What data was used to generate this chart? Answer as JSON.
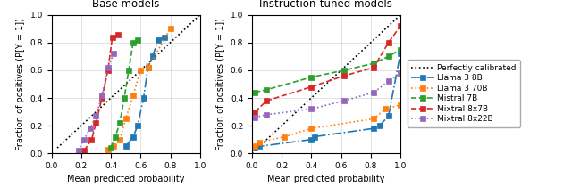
{
  "base_models": {
    "llama3_8b": {
      "x": [
        0.5,
        0.55,
        0.58,
        0.62,
        0.65,
        0.68,
        0.72,
        0.76
      ],
      "y": [
        0.05,
        0.12,
        0.2,
        0.4,
        0.62,
        0.7,
        0.82,
        0.84
      ],
      "color": "#1f77b4",
      "linestyle": "-.",
      "marker": "s",
      "label": "Llama 3 8B"
    },
    "llama3_70b": {
      "x": [
        0.38,
        0.42,
        0.46,
        0.5,
        0.55,
        0.6,
        0.65,
        0.8
      ],
      "y": [
        0.03,
        0.05,
        0.1,
        0.25,
        0.42,
        0.6,
        0.62,
        0.9
      ],
      "color": "#ff7f0e",
      "linestyle": ":",
      "marker": "s",
      "label": "Llama 3 70B"
    },
    "mistral_7b": {
      "x": [
        0.4,
        0.43,
        0.46,
        0.49,
        0.52,
        0.55,
        0.58
      ],
      "y": [
        0.04,
        0.12,
        0.22,
        0.4,
        0.6,
        0.8,
        0.82
      ],
      "color": "#2ca02c",
      "linestyle": "--",
      "marker": "s",
      "label": "Mistral 7B"
    },
    "mixtral_8x7b": {
      "x": [
        0.22,
        0.27,
        0.3,
        0.34,
        0.38,
        0.41,
        0.45
      ],
      "y": [
        0.02,
        0.1,
        0.22,
        0.4,
        0.6,
        0.84,
        0.86
      ],
      "color": "#d62728",
      "linestyle": "--",
      "marker": "s",
      "label": "Mixtral 8x7B"
    },
    "mixtral_8x22b": {
      "x": [
        0.18,
        0.22,
        0.26,
        0.3,
        0.34,
        0.38,
        0.42
      ],
      "y": [
        0.02,
        0.1,
        0.18,
        0.27,
        0.42,
        0.62,
        0.72
      ],
      "color": "#9467bd",
      "linestyle": ":",
      "marker": "s",
      "label": "Mixtral 8x22B"
    }
  },
  "instruct_models": {
    "llama3_8b": {
      "x": [
        0.02,
        0.05,
        0.4,
        0.42,
        0.82,
        0.86,
        0.92,
        1.0
      ],
      "y": [
        0.04,
        0.05,
        0.1,
        0.12,
        0.18,
        0.2,
        0.27,
        0.72
      ],
      "color": "#1f77b4",
      "linestyle": "-.",
      "marker": "s",
      "label": "Llama 3 8B"
    },
    "llama3_70b": {
      "x": [
        0.02,
        0.05,
        0.22,
        0.4,
        0.82,
        0.9,
        1.0
      ],
      "y": [
        0.05,
        0.08,
        0.12,
        0.18,
        0.25,
        0.32,
        0.35
      ],
      "color": "#ff7f0e",
      "linestyle": ":",
      "marker": "s",
      "label": "Llama 3 70B"
    },
    "mistral_7b": {
      "x": [
        0.02,
        0.1,
        0.4,
        0.62,
        0.82,
        0.92,
        1.0
      ],
      "y": [
        0.44,
        0.46,
        0.55,
        0.6,
        0.65,
        0.7,
        0.75
      ],
      "color": "#2ca02c",
      "linestyle": "--",
      "marker": "s",
      "label": "Mistral 7B"
    },
    "mixtral_8x7b": {
      "x": [
        0.02,
        0.1,
        0.4,
        0.62,
        0.82,
        0.92,
        1.0
      ],
      "y": [
        0.3,
        0.38,
        0.48,
        0.56,
        0.62,
        0.8,
        0.92
      ],
      "color": "#d62728",
      "linestyle": "--",
      "marker": "s",
      "label": "Mixtral 8x7B"
    },
    "mixtral_8x22b": {
      "x": [
        0.02,
        0.1,
        0.4,
        0.62,
        0.82,
        0.92,
        1.0
      ],
      "y": [
        0.26,
        0.28,
        0.32,
        0.38,
        0.44,
        0.52,
        0.58
      ],
      "color": "#9467bd",
      "linestyle": ":",
      "marker": "s",
      "label": "Mixtral 8x22B"
    }
  },
  "title_base": "Base models",
  "title_instruct": "Instruction-tuned models",
  "xlabel": "Mean predicted probability",
  "ylabel": "Fraction of positives (P[Y = 1])",
  "legend_label_calibrated": "Perfectly calibrated",
  "model_order": [
    "llama3_8b",
    "llama3_70b",
    "mistral_7b",
    "mixtral_8x7b",
    "mixtral_8x22b"
  ]
}
